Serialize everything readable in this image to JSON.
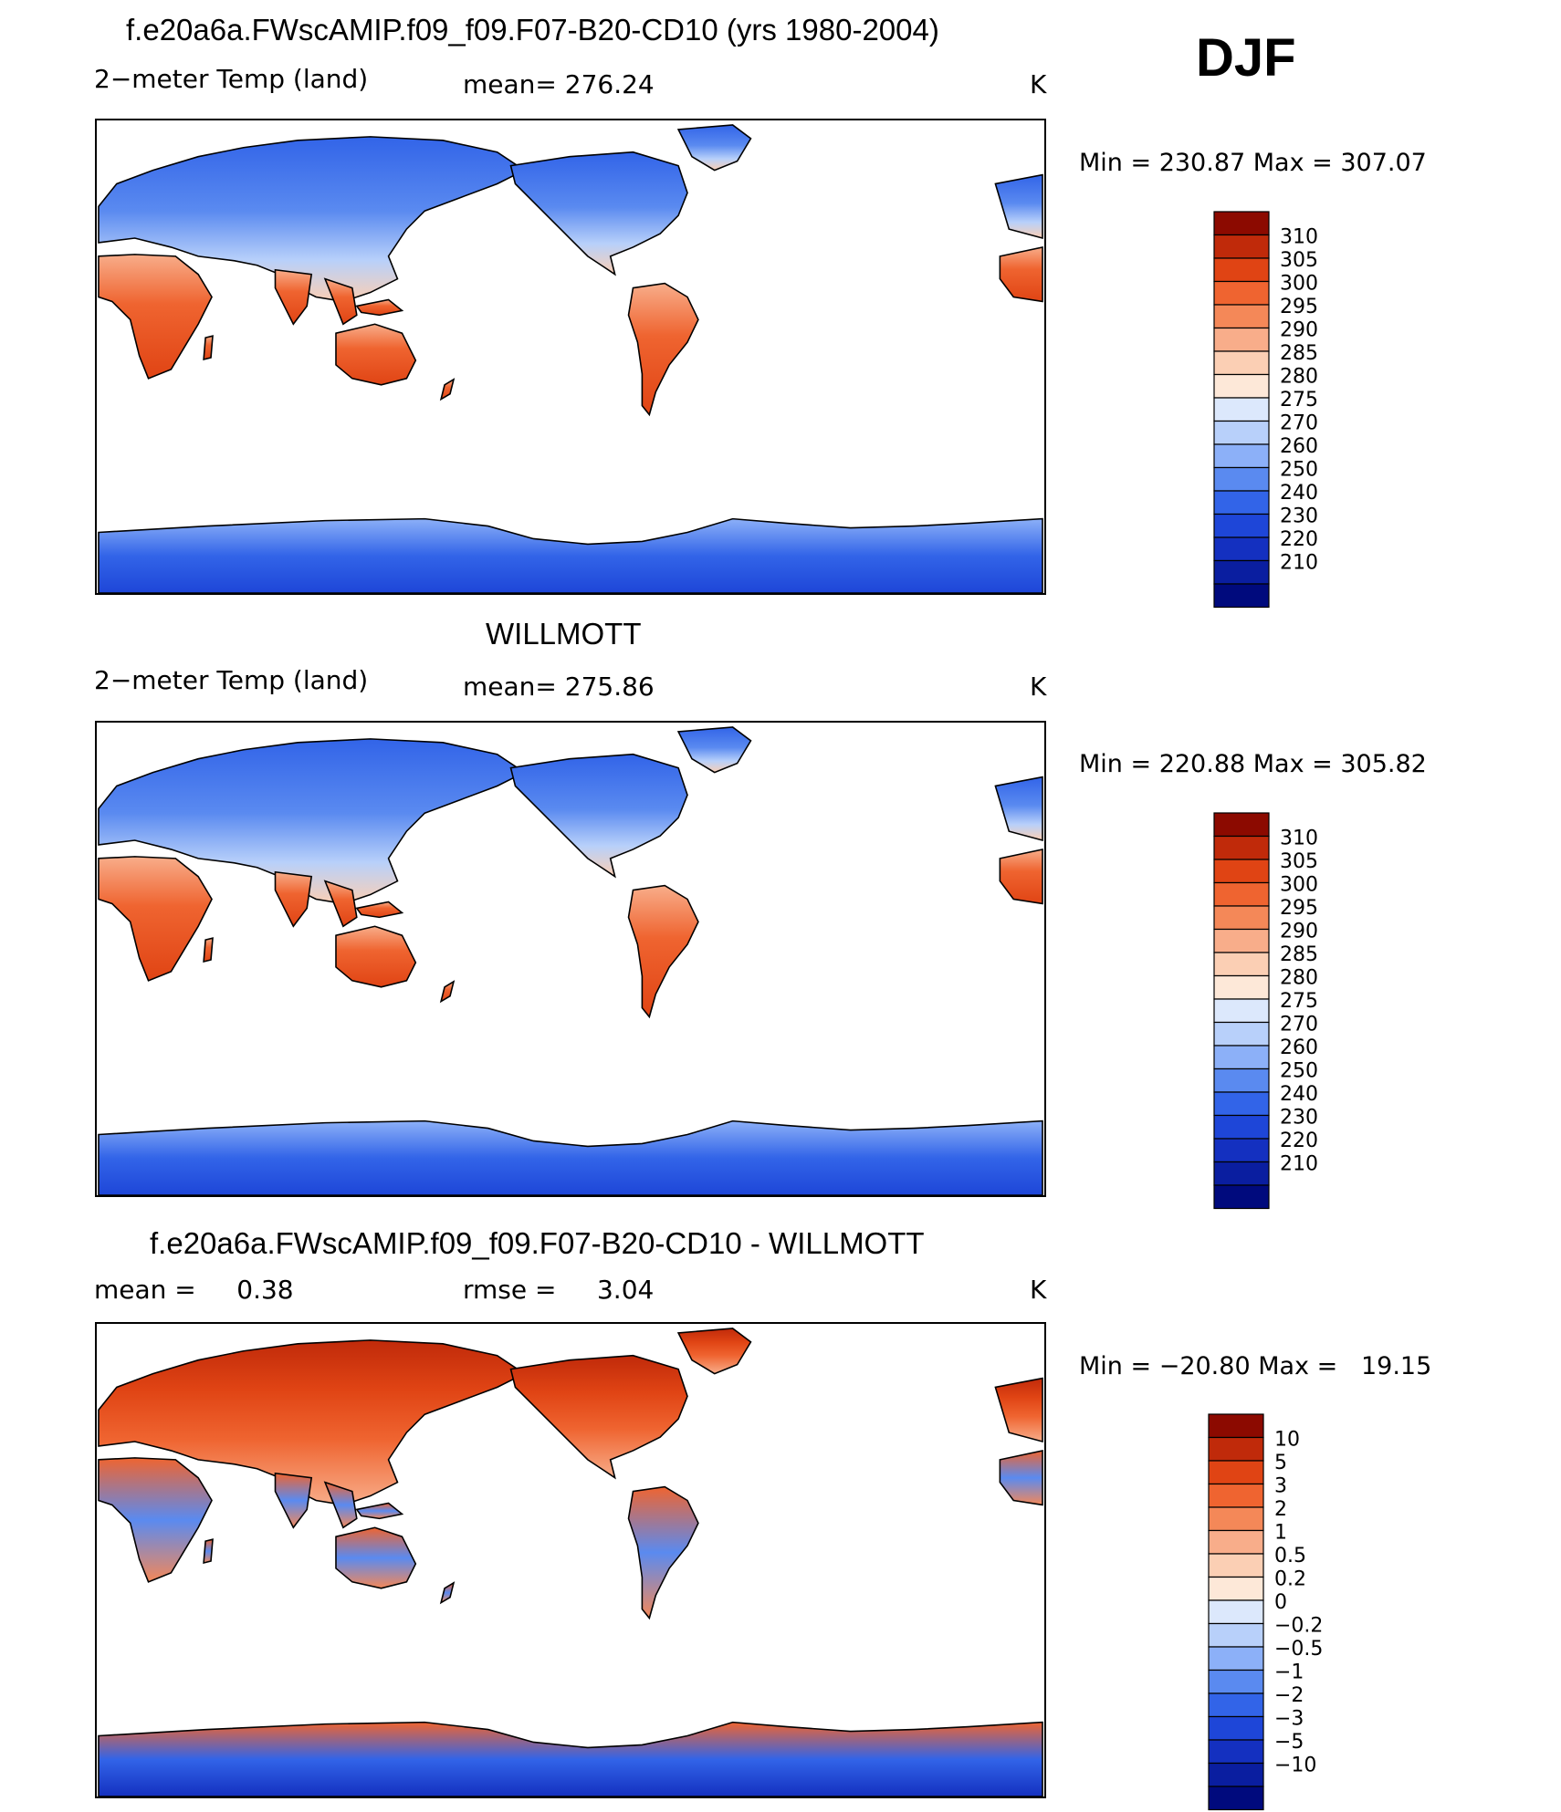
{
  "season": "DJF",
  "colors": {
    "temp_scale": [
      "#000a7d",
      "#0a1ea0",
      "#1430c0",
      "#1e46d8",
      "#3264e8",
      "#5a8af0",
      "#8cb0f8",
      "#b8d0fa",
      "#dce8fc",
      "#fde8d8",
      "#fbcfb4",
      "#f8ad8a",
      "#f48858",
      "#ef6430",
      "#e04414",
      "#c02a0a",
      "#8c0a00"
    ],
    "diff_scale": [
      "#000a7d",
      "#0a1ea0",
      "#1430c0",
      "#1e46d8",
      "#3264e8",
      "#5a8af0",
      "#8cb0f8",
      "#b8d0fa",
      "#dce8fc",
      "#fde8d8",
      "#fbcfb4",
      "#f8ad8a",
      "#f48858",
      "#ef6430",
      "#e04414",
      "#c02a0a",
      "#8c0a00"
    ]
  },
  "panels": [
    {
      "title": "f.e20a6a.FWscAMIP.f09_f09.F07-B20-CD10 (yrs 1980-2004)",
      "left_label": "2−meter Temp (land)",
      "mid_label": "mean= 276.24",
      "units": "K",
      "range_label": "Min = 230.87 Max = 307.07",
      "legend_labels": [
        "310",
        "305",
        "300",
        "295",
        "290",
        "285",
        "280",
        "275",
        "270",
        "260",
        "250",
        "240",
        "230",
        "220",
        "210"
      ],
      "scale": "temp_scale",
      "antarctica": "cold"
    },
    {
      "title": "WILLMOTT",
      "left_label": "2−meter Temp (land)",
      "mid_label": "mean= 275.86",
      "units": "K",
      "range_label": "Min = 220.88 Max = 305.82",
      "legend_labels": [
        "310",
        "305",
        "300",
        "295",
        "290",
        "285",
        "280",
        "275",
        "270",
        "260",
        "250",
        "240",
        "230",
        "220",
        "210"
      ],
      "scale": "temp_scale",
      "antarctica": "cold"
    },
    {
      "title": "f.e20a6a.FWscAMIP.f09_f09.F07-B20-CD10 - WILLMOTT",
      "left_label": "mean =     0.38",
      "mid_label": "rmse =     3.04",
      "units": "K",
      "range_label": "Min = −20.80 Max =   19.15",
      "legend_labels": [
        "10",
        "5",
        "3",
        "2",
        "1",
        "0.5",
        "0.2",
        "0",
        "−0.2",
        "−0.5",
        "−1",
        "−2",
        "−3",
        "−5",
        "−10"
      ],
      "scale": "diff_scale",
      "antarctica": "mixed"
    }
  ]
}
